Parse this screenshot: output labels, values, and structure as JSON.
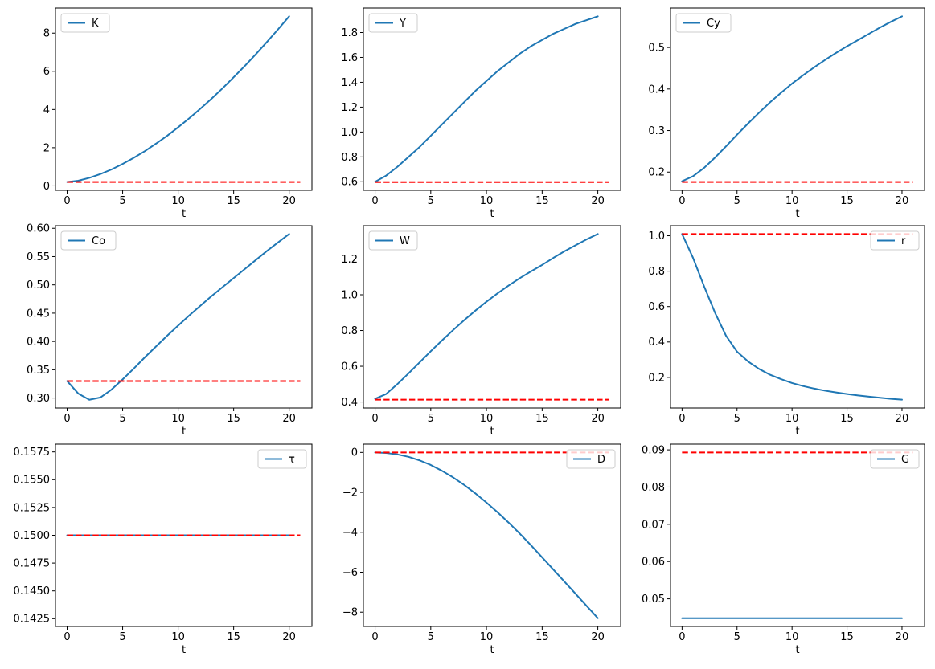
{
  "figure": {
    "background": "#ffffff",
    "series_color": "#1f77b4",
    "steady_state_color": "#ff0000",
    "spine_color": "#000000",
    "tick_label_color": "#000000",
    "legend_edge_color": "#cccccc",
    "grid": false,
    "x_ticks": [
      0,
      5,
      10,
      15,
      20
    ],
    "x_tick_labels": [
      "0",
      "5",
      "10",
      "15",
      "20"
    ],
    "xlim": [
      -1.05,
      22.05
    ],
    "description": "3x3 grid of line subplots: simulated transition path (solid blue) vs steady state (dashed red)"
  },
  "chart_data": [
    {
      "type": "line",
      "variable": "K",
      "legend_label": "K",
      "legend_loc": "upper-left",
      "xlabel": "t",
      "x": [
        0,
        1,
        2,
        3,
        4,
        5,
        6,
        7,
        8,
        9,
        10,
        11,
        12,
        13,
        14,
        15,
        16,
        17,
        18,
        19,
        20
      ],
      "values": [
        0.2,
        0.27,
        0.42,
        0.62,
        0.86,
        1.15,
        1.47,
        1.82,
        2.21,
        2.62,
        3.07,
        3.54,
        4.04,
        4.56,
        5.11,
        5.69,
        6.28,
        6.9,
        7.54,
        8.2,
        8.88
      ],
      "steady_state_value": 0.2,
      "steady_state_x": [
        0,
        21
      ],
      "ylim": [
        -0.234,
        9.314
      ],
      "y_tick_values": [
        0,
        2,
        4,
        6,
        8
      ],
      "y_tick_labels": [
        "0",
        "2",
        "4",
        "6",
        "8"
      ]
    },
    {
      "type": "line",
      "variable": "Y",
      "legend_label": "Y",
      "legend_loc": "upper-left",
      "xlabel": "t",
      "x": [
        0,
        1,
        2,
        3,
        4,
        5,
        6,
        7,
        8,
        9,
        10,
        11,
        12,
        13,
        14,
        15,
        16,
        17,
        18,
        19,
        20
      ],
      "values": [
        0.6,
        0.65,
        0.72,
        0.8,
        0.88,
        0.97,
        1.06,
        1.15,
        1.24,
        1.33,
        1.41,
        1.49,
        1.56,
        1.63,
        1.69,
        1.74,
        1.79,
        1.83,
        1.87,
        1.9,
        1.93
      ],
      "steady_state_value": 0.597,
      "steady_state_x": [
        0,
        21
      ],
      "ylim": [
        0.531,
        1.997
      ],
      "y_tick_values": [
        0.6,
        0.8,
        1.0,
        1.2,
        1.4,
        1.6,
        1.8
      ],
      "y_tick_labels": [
        "0.6",
        "0.8",
        "1.0",
        "1.2",
        "1.4",
        "1.6",
        "1.8"
      ]
    },
    {
      "type": "line",
      "variable": "Cy",
      "legend_label": "Cy",
      "legend_loc": "upper-left",
      "xlabel": "t",
      "x": [
        0,
        1,
        2,
        3,
        4,
        5,
        6,
        7,
        8,
        9,
        10,
        11,
        12,
        13,
        14,
        15,
        16,
        17,
        18,
        19,
        20
      ],
      "values": [
        0.178,
        0.19,
        0.21,
        0.235,
        0.262,
        0.29,
        0.317,
        0.343,
        0.368,
        0.391,
        0.413,
        0.433,
        0.452,
        0.47,
        0.487,
        0.503,
        0.518,
        0.533,
        0.548,
        0.562,
        0.575
      ],
      "steady_state_value": 0.176,
      "steady_state_x": [
        0,
        21
      ],
      "ylim": [
        0.156,
        0.595
      ],
      "y_tick_values": [
        0.2,
        0.3,
        0.4,
        0.5
      ],
      "y_tick_labels": [
        "0.2",
        "0.3",
        "0.4",
        "0.5"
      ]
    },
    {
      "type": "line",
      "variable": "Co",
      "legend_label": "Co",
      "legend_loc": "upper-left",
      "xlabel": "t",
      "x": [
        0,
        1,
        2,
        3,
        4,
        5,
        6,
        7,
        8,
        9,
        10,
        11,
        12,
        13,
        14,
        15,
        16,
        17,
        18,
        19,
        20
      ],
      "values": [
        0.33,
        0.308,
        0.297,
        0.301,
        0.315,
        0.333,
        0.352,
        0.372,
        0.391,
        0.41,
        0.428,
        0.446,
        0.463,
        0.48,
        0.496,
        0.512,
        0.528,
        0.544,
        0.56,
        0.575,
        0.59
      ],
      "steady_state_value": 0.33,
      "steady_state_x": [
        0,
        21
      ],
      "ylim": [
        0.2824,
        0.6046
      ],
      "y_tick_values": [
        0.3,
        0.35,
        0.4,
        0.45,
        0.5,
        0.55,
        0.6
      ],
      "y_tick_labels": [
        "0.30",
        "0.35",
        "0.40",
        "0.45",
        "0.50",
        "0.55",
        "0.60"
      ]
    },
    {
      "type": "line",
      "variable": "W",
      "legend_label": "W",
      "legend_loc": "upper-left",
      "xlabel": "t",
      "x": [
        0,
        1,
        2,
        3,
        4,
        5,
        6,
        7,
        8,
        9,
        10,
        11,
        12,
        13,
        14,
        15,
        16,
        17,
        18,
        19,
        20
      ],
      "values": [
        0.418,
        0.445,
        0.5,
        0.56,
        0.622,
        0.684,
        0.744,
        0.802,
        0.858,
        0.911,
        0.961,
        1.008,
        1.052,
        1.093,
        1.131,
        1.167,
        1.206,
        1.243,
        1.277,
        1.31,
        1.34
      ],
      "steady_state_value": 0.413,
      "steady_state_x": [
        0,
        21
      ],
      "ylim": [
        0.3666,
        1.3864
      ],
      "y_tick_values": [
        0.4,
        0.6,
        0.8,
        1.0,
        1.2
      ],
      "y_tick_labels": [
        "0.4",
        "0.6",
        "0.8",
        "1.0",
        "1.2"
      ]
    },
    {
      "type": "line",
      "variable": "r",
      "legend_label": "r",
      "legend_loc": "upper-right",
      "xlabel": "t",
      "x": [
        0,
        1,
        2,
        3,
        4,
        5,
        6,
        7,
        8,
        9,
        10,
        11,
        12,
        13,
        14,
        15,
        16,
        17,
        18,
        19,
        20
      ],
      "values": [
        1.01,
        0.875,
        0.715,
        0.565,
        0.435,
        0.345,
        0.29,
        0.248,
        0.215,
        0.19,
        0.168,
        0.151,
        0.137,
        0.125,
        0.115,
        0.106,
        0.098,
        0.091,
        0.085,
        0.079,
        0.074
      ],
      "steady_state_value": 1.01,
      "steady_state_x": [
        0,
        21
      ],
      "ylim": [
        0.0272,
        1.0568
      ],
      "y_tick_values": [
        0.2,
        0.4,
        0.6,
        0.8,
        1.0
      ],
      "y_tick_labels": [
        "0.2",
        "0.4",
        "0.6",
        "0.8",
        "1.0"
      ]
    },
    {
      "type": "line",
      "variable": "tau",
      "legend_label": "τ",
      "legend_loc": "upper-right",
      "xlabel": "t",
      "x": [
        0,
        1,
        2,
        3,
        4,
        5,
        6,
        7,
        8,
        9,
        10,
        11,
        12,
        13,
        14,
        15,
        16,
        17,
        18,
        19,
        20
      ],
      "values": [
        0.15,
        0.15,
        0.15,
        0.15,
        0.15,
        0.15,
        0.15,
        0.15,
        0.15,
        0.15,
        0.15,
        0.15,
        0.15,
        0.15,
        0.15,
        0.15,
        0.15,
        0.15,
        0.15,
        0.15,
        0.15
      ],
      "steady_state_value": 0.15,
      "steady_state_x": [
        0,
        21
      ],
      "ylim": [
        0.1418,
        0.1582
      ],
      "y_tick_values": [
        0.1425,
        0.145,
        0.1475,
        0.15,
        0.1525,
        0.155,
        0.1575
      ],
      "y_tick_labels": [
        "0.1425",
        "0.1450",
        "0.1475",
        "0.1500",
        "0.1525",
        "0.1550",
        "0.1575"
      ]
    },
    {
      "type": "line",
      "variable": "D",
      "legend_label": "D",
      "legend_loc": "upper-right",
      "xlabel": "t",
      "x": [
        0,
        1,
        2,
        3,
        4,
        5,
        6,
        7,
        8,
        9,
        10,
        11,
        12,
        13,
        14,
        15,
        16,
        17,
        18,
        19,
        20
      ],
      "values": [
        0,
        -0.03,
        -0.1,
        -0.22,
        -0.4,
        -0.63,
        -0.92,
        -1.25,
        -1.63,
        -2.05,
        -2.51,
        -3.0,
        -3.52,
        -4.07,
        -4.65,
        -5.26,
        -5.86,
        -6.47,
        -7.08,
        -7.69,
        -8.3
      ],
      "steady_state_value": 0,
      "steady_state_x": [
        0,
        21
      ],
      "ylim": [
        -8.715,
        0.415
      ],
      "y_tick_values": [
        0,
        -2,
        -4,
        -6,
        -8
      ],
      "y_tick_labels": [
        "0",
        "−2",
        "−4",
        "−6",
        "−8"
      ]
    },
    {
      "type": "line",
      "variable": "G",
      "legend_label": "G",
      "legend_loc": "upper-right",
      "xlabel": "t",
      "x": [
        0,
        1,
        2,
        3,
        4,
        5,
        6,
        7,
        8,
        9,
        10,
        11,
        12,
        13,
        14,
        15,
        16,
        17,
        18,
        19,
        20
      ],
      "values": [
        0.0448,
        0.0448,
        0.0448,
        0.0448,
        0.0448,
        0.0448,
        0.0448,
        0.0448,
        0.0448,
        0.0448,
        0.0448,
        0.0448,
        0.0448,
        0.0448,
        0.0448,
        0.0448,
        0.0448,
        0.0448,
        0.0448,
        0.0448,
        0.0448
      ],
      "steady_state_value": 0.0893,
      "steady_state_x": [
        0,
        21
      ],
      "ylim": [
        0.04258,
        0.09153
      ],
      "y_tick_values": [
        0.05,
        0.06,
        0.07,
        0.08,
        0.09
      ],
      "y_tick_labels": [
        "0.05",
        "0.06",
        "0.07",
        "0.08",
        "0.09"
      ]
    }
  ]
}
